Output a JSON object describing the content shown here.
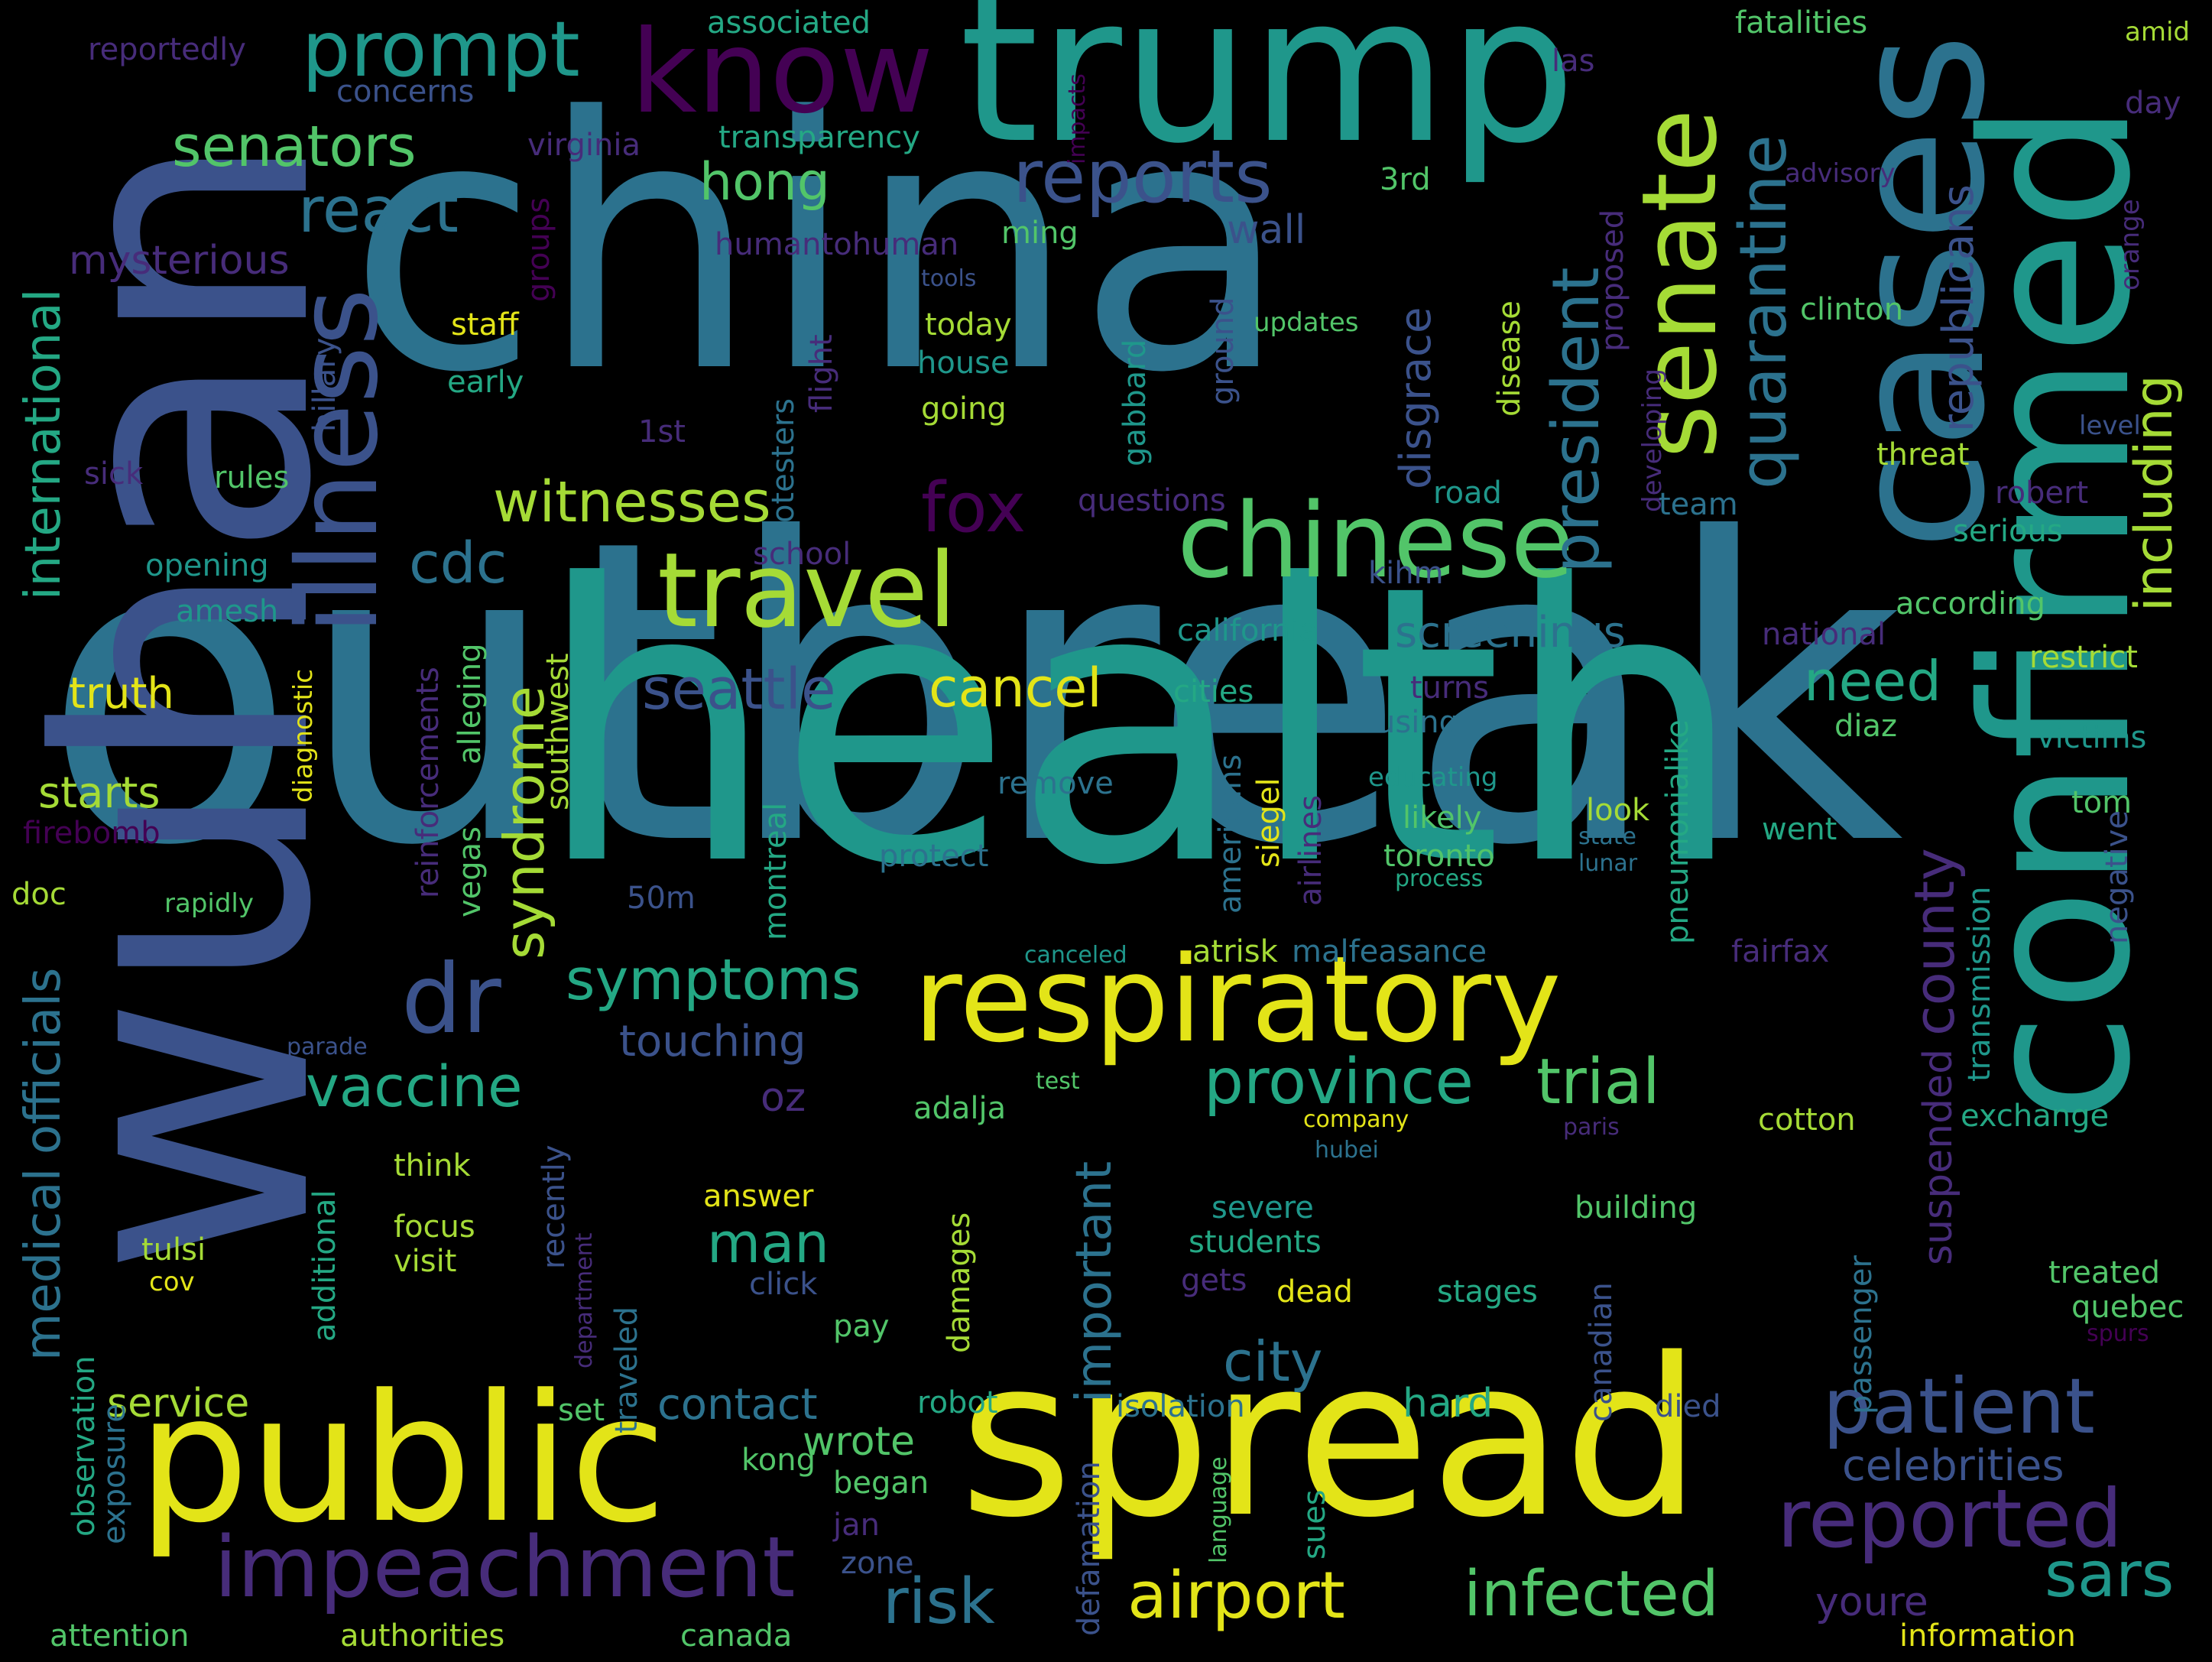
{
  "palette": {
    "background": "#000000",
    "yellow": "#e3e418",
    "lime": "#a5db36",
    "green": "#52c569",
    "teal": "#24a884",
    "sea": "#1f978b",
    "blue": "#2c728e",
    "slate": "#3b528b",
    "indigo": "#472c7a",
    "purple": "#440154"
  },
  "words": {
    "outbreak": "outbreak",
    "health": "health",
    "china": "china",
    "wuhan": "wuhan",
    "trump": "trump",
    "spread": "spread",
    "public": "public",
    "confirmed": "confirmed",
    "cases": "cases",
    "respiratory": "respiratory",
    "chinese": "chinese",
    "travel": "travel",
    "know": "know",
    "illness": "illness",
    "senate": "senate",
    "impeachment": "impeachment",
    "patient": "patient",
    "reported": "reported",
    "infected": "infected",
    "airport": "airport",
    "prompt": "prompt",
    "reports": "reports",
    "dr": "dr",
    "president": "president",
    "quarantine": "quarantine",
    "province": "province",
    "trial": "trial",
    "senators": "senators",
    "react": "react",
    "witnesses": "witnesses",
    "symptoms": "symptoms",
    "vaccine": "vaccine",
    "seattle": "seattle",
    "cancel": "cancel",
    "fox": "fox",
    "risk": "risk",
    "sars": "sars",
    "city": "city",
    "man": "man",
    "hong": "hong",
    "syndrome": "syndrome",
    "cdc": "cdc",
    "need": "need",
    "county": "county",
    "including": "including",
    "international": "international",
    "officials": "officials",
    "medical": "medical",
    "important": "important",
    "republicans": "republicans",
    "disgrace": "disgrace",
    "screenings": "screenings",
    "touching": "touching",
    "contact": "contact",
    "service": "service",
    "celebrities": "celebrities",
    "youre": "youre",
    "suspended": "suspended",
    "truth": "truth",
    "starts": "starts",
    "mysterious": "mysterious",
    "wall": "wall",
    "wrote": "wrote",
    "hard": "hard",
    "associated": "associated",
    "fatalities": "fatalities",
    "amid": "amid",
    "day": "day",
    "reportedly": "reportedly",
    "las": "las",
    "concerns": "concerns",
    "virginia": "virginia",
    "transparency": "transparency",
    "impacts": "impacts",
    "advisory": "advisory",
    "3rd": "3rd",
    "proposed": "proposed",
    "ming": "ming",
    "humantohuman": "humantohuman",
    "groups": "groups",
    "tools": "tools",
    "orange": "orange",
    "staff": "staff",
    "today": "today",
    "updates": "updates",
    "clinton": "clinton",
    "hillary": "hillary",
    "early": "early",
    "house": "house",
    "going": "going",
    "flight": "flight",
    "protesters": "protesters",
    "ground": "ground",
    "gabbard": "gabbard",
    "disease": "disease",
    "developing": "developing",
    "level": "level",
    "1st": "1st",
    "threat": "threat",
    "sick": "sick",
    "rules": "rules",
    "questions": "questions",
    "road": "road",
    "team": "team",
    "robert": "robert",
    "serious": "serious",
    "opening": "opening",
    "school": "school",
    "kihm": "kihm",
    "amesh": "amesh",
    "according": "according",
    "california": "california",
    "national": "national",
    "restrict": "restrict",
    "alleging": "alleging",
    "southwest": "southwest",
    "cities": "cities",
    "turns": "turns",
    "using": "using",
    "diaz": "diaz",
    "victims": "victims",
    "reinforcements": "reinforcements",
    "diagnostic": "diagnostic",
    "firebomb": "firebomb",
    "remove": "remove",
    "educating": "educating",
    "airlines": "airlines",
    "siegel": "siegel",
    "americans": "americans",
    "likely": "likely",
    "look": "look",
    "state": "state",
    "went": "went",
    "tom": "tom",
    "negative": "negative",
    "vegas": "vegas",
    "doc": "doc",
    "protect": "protect",
    "toronto": "toronto",
    "lunar": "lunar",
    "process": "process",
    "pneumonialike": "pneumonialike",
    "transmission": "transmission",
    "rapidly": "rapidly",
    "50m": "50m",
    "montreal": "montreal",
    "canceled": "canceled",
    "atrisk": "atrisk",
    "malfeasance": "malfeasance",
    "fairfax": "fairfax",
    "parade": "parade",
    "oz": "oz",
    "adalja": "adalja",
    "test": "test",
    "company": "company",
    "hubei": "hubei",
    "paris": "paris",
    "cotton": "cotton",
    "exchange": "exchange",
    "think": "think",
    "additional": "additional",
    "recently": "recently",
    "department": "department",
    "answer": "answer",
    "damages": "damages",
    "severe": "severe",
    "students": "students",
    "building": "building",
    "focus": "focus",
    "visit": "visit",
    "tulsi": "tulsi",
    "cov": "cov",
    "traveled": "traveled",
    "click": "click",
    "pay": "pay",
    "gets": "gets",
    "dead": "dead",
    "stages": "stages",
    "canadian": "canadian",
    "passenger": "passenger",
    "treated": "treated",
    "quebec": "quebec",
    "spurs": "spurs",
    "observation": "observation",
    "exposure": "exposure",
    "set": "set",
    "robot": "robot",
    "isolation": "isolation",
    "defamation": "defamation",
    "language": "language",
    "died": "died",
    "kong": "kong",
    "began": "began",
    "jan": "jan",
    "zone": "zone",
    "sues": "sues",
    "attention": "attention",
    "authorities": "authorities",
    "canada": "canada",
    "information": "information"
  }
}
